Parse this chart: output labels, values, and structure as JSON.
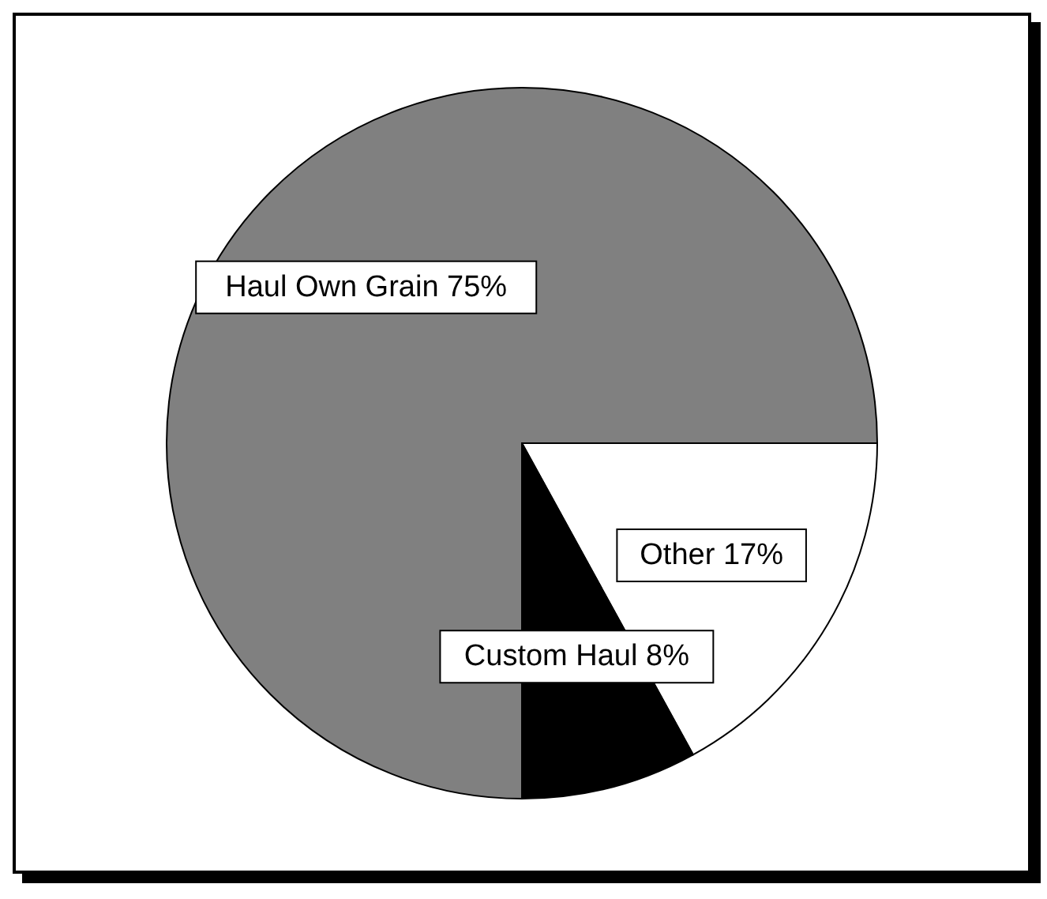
{
  "chart_data": {
    "type": "pie",
    "categories": [
      "Other",
      "Custom Haul",
      "Haul Own Grain"
    ],
    "values": [
      17,
      8,
      75
    ],
    "colors": [
      "#ffffff",
      "#000000",
      "#808080"
    ],
    "value_labels": [
      "17%",
      "8%",
      "75%"
    ]
  }
}
